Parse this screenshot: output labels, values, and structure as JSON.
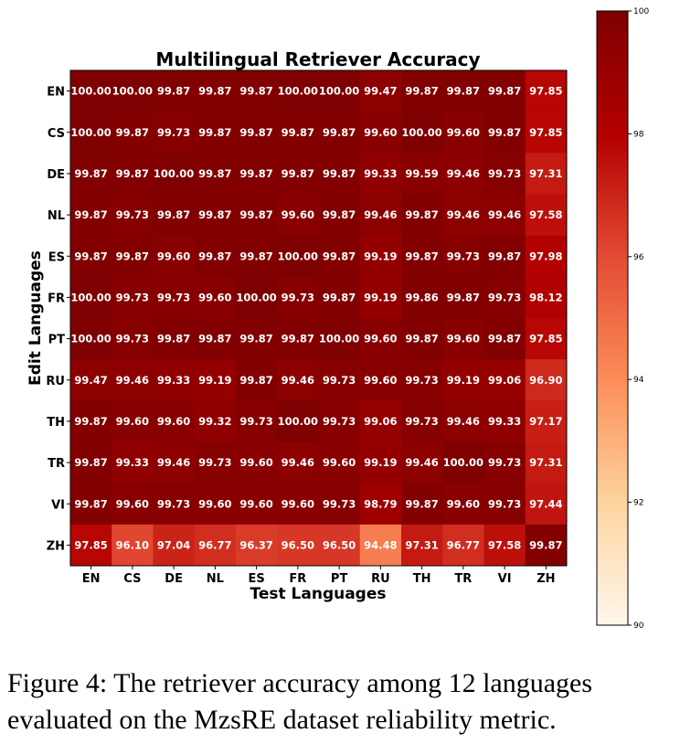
{
  "chart_data": {
    "type": "heatmap",
    "title": "Multilingual Retriever Accuracy",
    "xlabel": "Test Languages",
    "ylabel": "Edit Languages",
    "x_categories": [
      "EN",
      "CS",
      "DE",
      "NL",
      "ES",
      "FR",
      "PT",
      "RU",
      "TH",
      "TR",
      "VI",
      "ZH"
    ],
    "y_categories": [
      "EN",
      "CS",
      "DE",
      "NL",
      "ES",
      "FR",
      "PT",
      "RU",
      "TH",
      "TR",
      "VI",
      "ZH"
    ],
    "values": [
      [
        "100.00",
        "100.00",
        "99.87",
        "99.87",
        "99.87",
        "100.00",
        "100.00",
        "99.47",
        "99.87",
        "99.87",
        "99.87",
        "97.85"
      ],
      [
        "100.00",
        "99.87",
        "99.73",
        "99.87",
        "99.87",
        "99.87",
        "99.87",
        "99.60",
        "100.00",
        "99.60",
        "99.87",
        "97.85"
      ],
      [
        "99.87",
        "99.87",
        "100.00",
        "99.87",
        "99.87",
        "99.87",
        "99.87",
        "99.33",
        "99.59",
        "99.46",
        "99.73",
        "97.31"
      ],
      [
        "99.87",
        "99.73",
        "99.87",
        "99.87",
        "99.87",
        "99.60",
        "99.87",
        "99.46",
        "99.87",
        "99.46",
        "99.46",
        "97.58"
      ],
      [
        "99.87",
        "99.87",
        "99.60",
        "99.87",
        "99.87",
        "100.00",
        "99.87",
        "99.19",
        "99.87",
        "99.73",
        "99.87",
        "97.98"
      ],
      [
        "100.00",
        "99.73",
        "99.73",
        "99.60",
        "100.00",
        "99.73",
        "99.87",
        "99.19",
        "99.86",
        "99.87",
        "99.73",
        "98.12"
      ],
      [
        "100.00",
        "99.73",
        "99.87",
        "99.87",
        "99.87",
        "99.87",
        "100.00",
        "99.60",
        "99.87",
        "99.60",
        "99.87",
        "97.85"
      ],
      [
        "99.47",
        "99.46",
        "99.33",
        "99.19",
        "99.87",
        "99.46",
        "99.73",
        "99.60",
        "99.73",
        "99.19",
        "99.06",
        "96.90"
      ],
      [
        "99.87",
        "99.60",
        "99.60",
        "99.32",
        "99.73",
        "100.00",
        "99.73",
        "99.06",
        "99.73",
        "99.46",
        "99.33",
        "97.17"
      ],
      [
        "99.87",
        "99.33",
        "99.46",
        "99.73",
        "99.60",
        "99.46",
        "99.60",
        "99.19",
        "99.46",
        "100.00",
        "99.73",
        "97.31"
      ],
      [
        "99.87",
        "99.60",
        "99.73",
        "99.60",
        "99.60",
        "99.60",
        "99.73",
        "98.79",
        "99.87",
        "99.60",
        "99.73",
        "97.44"
      ],
      [
        "97.85",
        "96.10",
        "97.04",
        "96.77",
        "96.37",
        "96.50",
        "96.50",
        "94.48",
        "97.31",
        "96.77",
        "97.58",
        "99.87"
      ]
    ],
    "colorscale": "OrRd",
    "colorbar": {
      "range": [
        90,
        100
      ],
      "ticks": [
        "90",
        "92",
        "94",
        "96",
        "98",
        "100"
      ]
    }
  },
  "caption": {
    "line1": "Figure 4: The retriever accuracy among 12 languages",
    "line2": "evaluated on the MzsRE dataset reliability metric."
  }
}
